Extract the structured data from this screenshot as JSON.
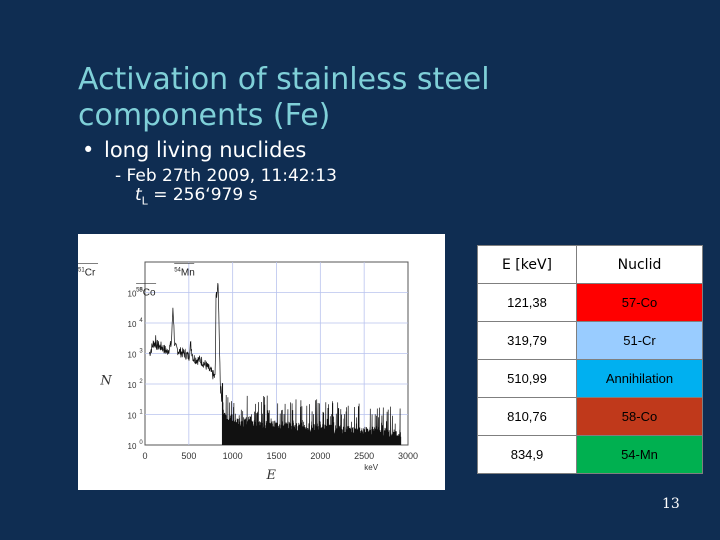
{
  "slide": {
    "title": "Activation of stainless steel components (Fe)",
    "bullet": "long living nuclides",
    "sub_line1": "- Feb 27th 2009, 11:42:13",
    "sub_line2_var": "t",
    "sub_line2_sub": "L",
    "sub_line2_rest": " = 256‘979  s",
    "page_number": "13"
  },
  "chart_data": {
    "type": "line",
    "xlabel": "E",
    "ylabel": "N",
    "x_unit": "keV",
    "x_ticks": [
      "0",
      "500",
      "1000",
      "1500",
      "2000",
      "2500",
      "3000"
    ],
    "y_ticks": [
      "10",
      "10",
      "10",
      "10",
      "10",
      "10"
    ],
    "y_exponents": [
      "0",
      "1",
      "2",
      "3",
      "4",
      "5"
    ],
    "xlim": [
      0,
      3000
    ],
    "ylim_log10": [
      0,
      6
    ],
    "grid": true,
    "peak_labels": [
      {
        "mass": "51",
        "symbol": "Cr",
        "energy": 319.79
      },
      {
        "mass": "54",
        "symbol": "Mn",
        "energy": 834.9
      },
      {
        "mass": "58",
        "symbol": "Co",
        "energy": 810.76
      }
    ],
    "approx_log10_counts": [
      {
        "x": 50,
        "y": 3.0
      },
      {
        "x": 100,
        "y": 3.35
      },
      {
        "x": 150,
        "y": 3.25
      },
      {
        "x": 200,
        "y": 3.2
      },
      {
        "x": 250,
        "y": 3.05
      },
      {
        "x": 300,
        "y": 3.3
      },
      {
        "x": 320,
        "y": 4.5
      },
      {
        "x": 340,
        "y": 3.2
      },
      {
        "x": 400,
        "y": 3.05
      },
      {
        "x": 450,
        "y": 3.0
      },
      {
        "x": 500,
        "y": 2.9
      },
      {
        "x": 520,
        "y": 3.3
      },
      {
        "x": 550,
        "y": 2.85
      },
      {
        "x": 600,
        "y": 2.8
      },
      {
        "x": 650,
        "y": 2.75
      },
      {
        "x": 700,
        "y": 2.6
      },
      {
        "x": 750,
        "y": 2.4
      },
      {
        "x": 800,
        "y": 2.2
      },
      {
        "x": 811,
        "y": 4.9
      },
      {
        "x": 835,
        "y": 5.2
      },
      {
        "x": 860,
        "y": 1.9
      },
      {
        "x": 900,
        "y": 1.0
      },
      {
        "x": 1000,
        "y": 0.7
      },
      {
        "x": 1500,
        "y": 0.6
      },
      {
        "x": 2000,
        "y": 0.5
      },
      {
        "x": 2600,
        "y": 0.4
      },
      {
        "x": 2900,
        "y": 0.3
      }
    ]
  },
  "table": {
    "headers": [
      "E [keV]",
      "Nuclid"
    ],
    "rows": [
      {
        "energy": "121,38",
        "nuclid": "57-Co",
        "color": "#ff0000"
      },
      {
        "energy": "319,79",
        "nuclid": "51-Cr",
        "color": "#99ccff"
      },
      {
        "energy": "510,99",
        "nuclid": "Annihilation",
        "color": "#00b0f0"
      },
      {
        "energy": "810,76",
        "nuclid": "58-Co",
        "color": "#c0391b"
      },
      {
        "energy": "834,9",
        "nuclid": "54-Mn",
        "color": "#00b050"
      }
    ]
  }
}
